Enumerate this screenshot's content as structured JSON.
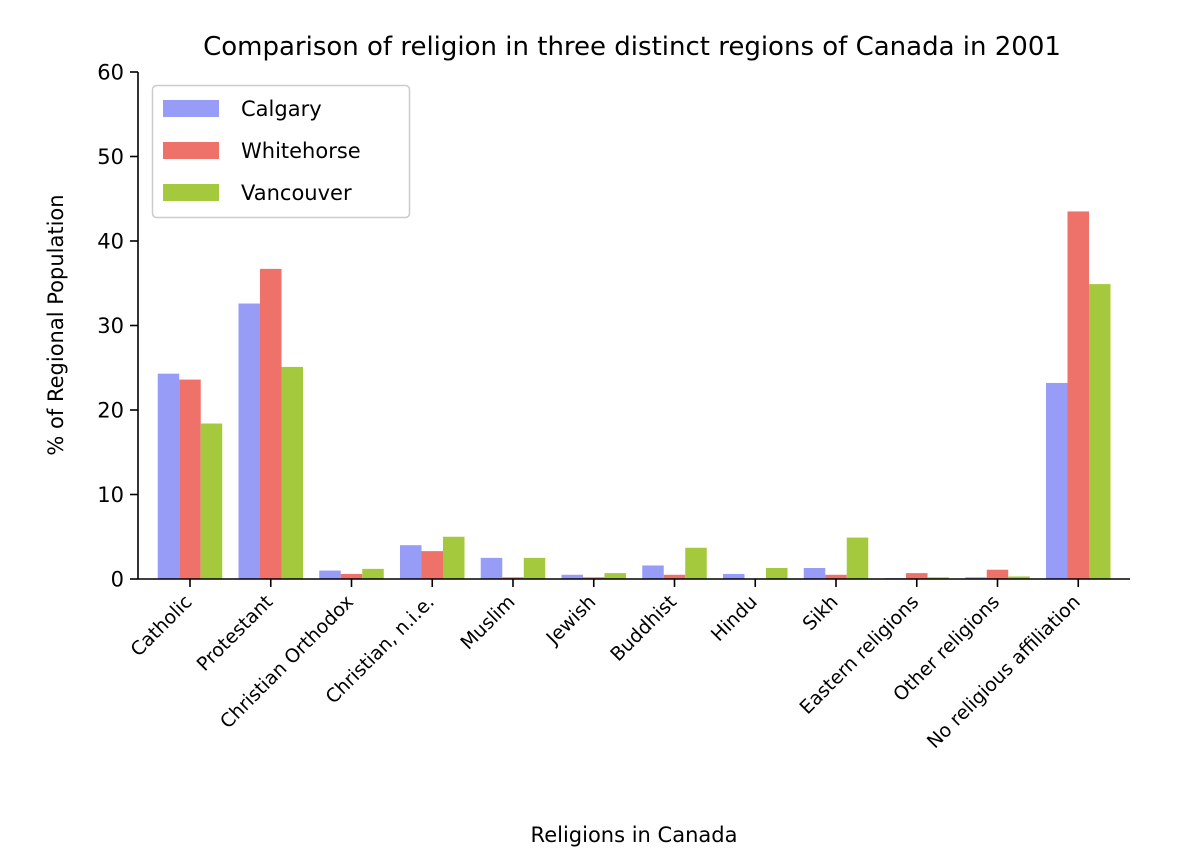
{
  "chart_data": {
    "type": "bar",
    "title": "Comparison of religion in three distinct regions of Canada in 2001",
    "xlabel": "Religions in Canada",
    "ylabel": "% of Regional Population",
    "ylim": [
      0,
      60
    ],
    "yticks": [
      0,
      10,
      20,
      30,
      40,
      50,
      60
    ],
    "grid": false,
    "legend_position": "top-left",
    "categories": [
      "Catholic",
      "Protestant",
      "Christian Orthodox",
      "Christian, n.i.e.",
      "Muslim",
      "Jewish",
      "Buddhist",
      "Hindu",
      "Sikh",
      "Eastern religions",
      "Other religions",
      "No religious affiliation"
    ],
    "series": [
      {
        "name": "Calgary",
        "color": "#979cf7",
        "values": [
          24.3,
          32.6,
          1.0,
          4.0,
          2.5,
          0.5,
          1.6,
          0.6,
          1.3,
          0.1,
          0.2,
          23.2
        ]
      },
      {
        "name": "Whitehorse",
        "color": "#ef726a",
        "values": [
          23.6,
          36.7,
          0.6,
          3.3,
          0.2,
          0.2,
          0.5,
          0.0,
          0.5,
          0.7,
          1.1,
          43.5
        ]
      },
      {
        "name": "Vancouver",
        "color": "#a4c93c",
        "values": [
          18.4,
          25.1,
          1.2,
          5.0,
          2.5,
          0.7,
          3.7,
          1.3,
          4.9,
          0.2,
          0.3,
          34.9
        ]
      }
    ]
  }
}
